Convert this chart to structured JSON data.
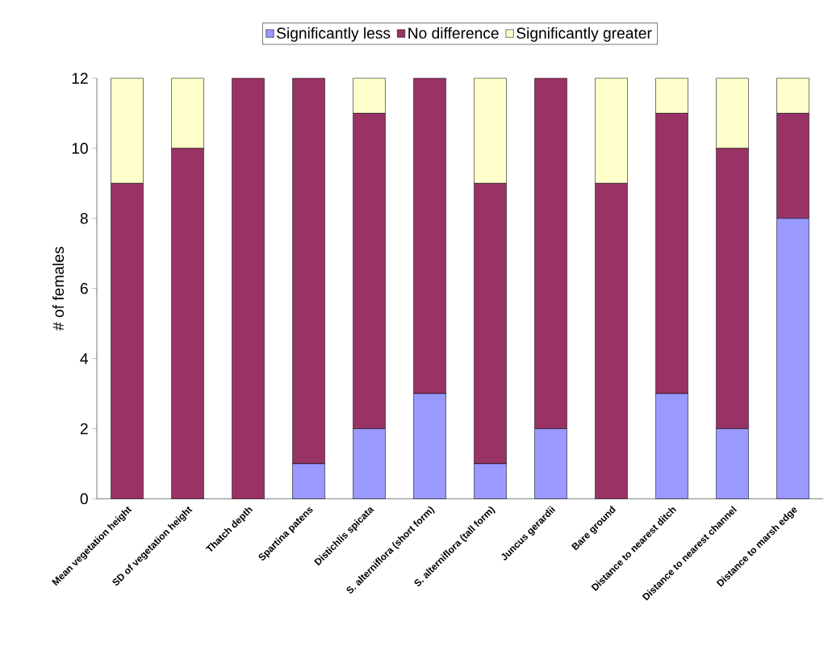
{
  "chart_data": {
    "type": "bar",
    "stacked": true,
    "ylabel": "# of females",
    "categories": [
      "Mean vegetation height",
      "SD of vegetation height",
      "Thatch depth",
      "Spartina patens",
      "Distichlis spicata",
      "S. alterniflora (short form)",
      "S. alterniflora (tall form)",
      "Juncus gerardii",
      "Bare ground",
      "Distance to nearest ditch",
      "Distance to nearest channel",
      "Distance to marsh edge"
    ],
    "series": [
      {
        "name": "Significantly less",
        "color": "#9999ff",
        "values": [
          0,
          0,
          0,
          1,
          2,
          3,
          1,
          2,
          0,
          3,
          2,
          8
        ]
      },
      {
        "name": "No difference",
        "color": "#993366",
        "values": [
          9,
          10,
          12,
          11,
          9,
          9,
          8,
          10,
          9,
          8,
          8,
          3
        ]
      },
      {
        "name": "Significantly greater",
        "color": "#ffffcc",
        "values": [
          3,
          2,
          0,
          0,
          1,
          0,
          3,
          0,
          3,
          1,
          2,
          1
        ]
      }
    ],
    "ylim": [
      0,
      12
    ],
    "yticks": [
      0,
      2,
      4,
      6,
      8,
      10,
      12
    ],
    "grid": false,
    "legend": "top"
  }
}
